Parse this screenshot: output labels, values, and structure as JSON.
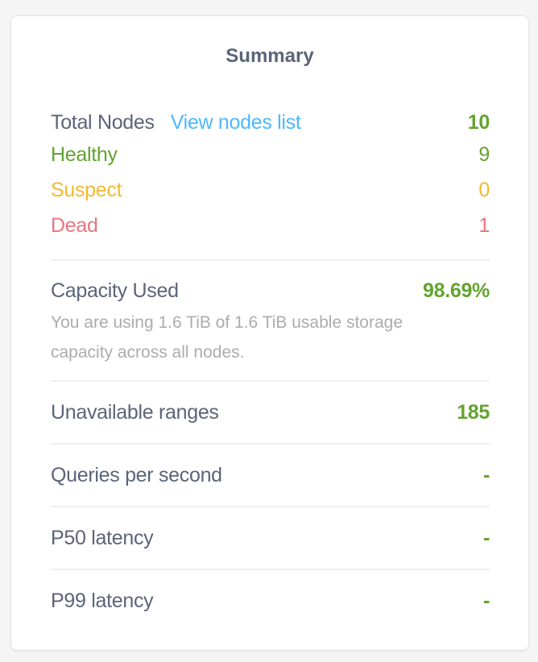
{
  "title": "Summary",
  "nodes": {
    "total_label": "Total Nodes",
    "view_link": "View nodes list",
    "total_value": "10",
    "healthy_label": "Healthy",
    "healthy_value": "9",
    "suspect_label": "Suspect",
    "suspect_value": "0",
    "dead_label": "Dead",
    "dead_value": "1"
  },
  "capacity": {
    "label": "Capacity Used",
    "value": "98.69%",
    "description": "You are using 1.6 TiB of 1.6 TiB usable storage capacity across all nodes."
  },
  "metrics": [
    {
      "label": "Unavailable ranges",
      "value": "185"
    },
    {
      "label": "Queries per second",
      "value": "-"
    },
    {
      "label": "P50 latency",
      "value": "-"
    },
    {
      "label": "P99 latency",
      "value": "-"
    }
  ],
  "colors": {
    "green": "#63a32f",
    "blue": "#4db8ff",
    "yellow": "#f2b92e",
    "red": "#e87580",
    "text": "#5b6479"
  }
}
